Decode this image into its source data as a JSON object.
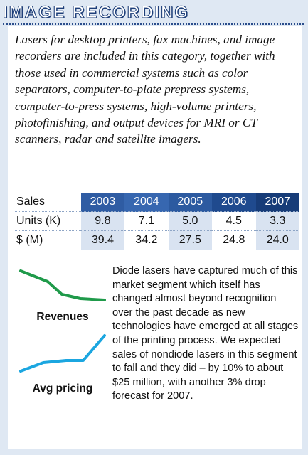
{
  "header": {
    "title": "IMAGE RECORDING"
  },
  "intro": "Lasers for desktop printers, fax machines, and image recorders are included in this category, together with those used in commercial systems such as color separators, computer-to-plate prepress systems, computer-to-press systems, high-volume printers, photofinishing, and output devices for MRI or CT scanners, radar and satellite imagers.",
  "table": {
    "corner": "Sales",
    "years": [
      "2003",
      "2004",
      "2005",
      "2006",
      "2007"
    ],
    "rows": [
      {
        "label": "Units (K)",
        "values": [
          "9.8",
          "7.1",
          "5.0",
          "4.5",
          "3.3"
        ]
      },
      {
        "label": "$ (M)",
        "values": [
          "39.4",
          "34.2",
          "27.5",
          "24.8",
          "24.0"
        ]
      }
    ]
  },
  "sparklines": {
    "revenues_label": "Revenues",
    "pricing_label": "Avg pricing",
    "revenues_color": "#1f9a4a",
    "pricing_color": "#1ba6e0",
    "revenues_trend": "falling",
    "pricing_trend": "rising"
  },
  "body": "Diode lasers have captured much of this market segment which itself has changed almost beyond recognition over the past decade as new technologies have emerged at all stages of the printing process. We expected sales of nondiode lasers in this segment to fall and they did – by 10% to about $25 million, with another 3% drop forecast for 2007.",
  "colors": {
    "background": "#dfe8f3",
    "title_outline": "#1e3f79",
    "year_header": "#2c5aa0",
    "value_cell": "#d9e3f1"
  }
}
